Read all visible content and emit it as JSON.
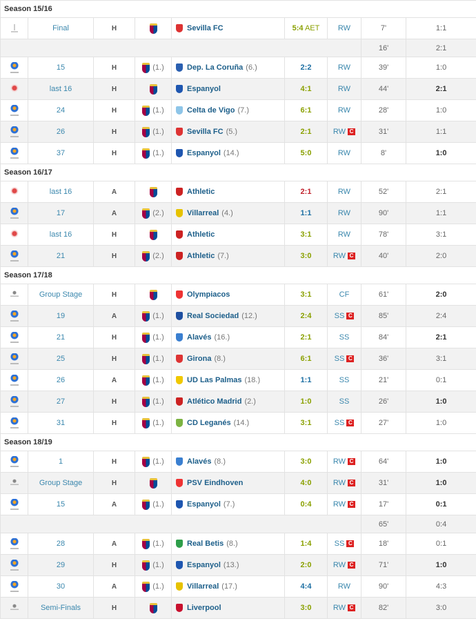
{
  "colors": {
    "win": "#8aa000",
    "draw": "#1d6fa3",
    "loss": "#c0202a",
    "link": "#1d5f8a"
  },
  "seasons": [
    {
      "label": "Season 15/16",
      "rows": [
        {
          "comp": "super-cup-icon",
          "round": "Final",
          "venue": "H",
          "bpos": "",
          "opp": "Sevilla FC",
          "opos": "",
          "oc": "#d33",
          "result": "5:4",
          "extra": "AET",
          "rc": "win",
          "pos": "RW",
          "cap": false,
          "min": "7'",
          "score": "1:1",
          "bold": false
        },
        {
          "sub": true,
          "min": "16'",
          "score": "2:1",
          "bold": false
        },
        {
          "comp": "laliga-icon",
          "round": "15",
          "venue": "H",
          "bpos": "(1.)",
          "opp": "Dep. La Coruña",
          "opos": "(6.)",
          "oc": "#2a5fb0",
          "result": "2:2",
          "rc": "draw",
          "pos": "RW",
          "cap": false,
          "min": "39'",
          "score": "1:0",
          "bold": false
        },
        {
          "comp": "copa-del-rey-icon",
          "round": "last 16",
          "venue": "H",
          "bpos": "",
          "opp": "Espanyol",
          "opos": "",
          "oc": "#1e56b0",
          "result": "4:1",
          "rc": "win",
          "pos": "RW",
          "cap": false,
          "min": "44'",
          "score": "2:1",
          "bold": true
        },
        {
          "comp": "laliga-icon",
          "round": "24",
          "venue": "H",
          "bpos": "(1.)",
          "opp": "Celta de Vigo",
          "opos": "(7.)",
          "oc": "#8ec5e8",
          "result": "6:1",
          "rc": "win",
          "pos": "RW",
          "cap": false,
          "min": "28'",
          "score": "1:0",
          "bold": false
        },
        {
          "comp": "laliga-icon",
          "round": "26",
          "venue": "H",
          "bpos": "(1.)",
          "opp": "Sevilla FC",
          "opos": "(5.)",
          "oc": "#d33",
          "result": "2:1",
          "rc": "win",
          "pos": "RW",
          "cap": true,
          "min": "31'",
          "score": "1:1",
          "bold": false
        },
        {
          "comp": "laliga-icon",
          "round": "37",
          "venue": "H",
          "bpos": "(1.)",
          "opp": "Espanyol",
          "opos": "(14.)",
          "oc": "#1e56b0",
          "result": "5:0",
          "rc": "win",
          "pos": "RW",
          "cap": false,
          "min": "8'",
          "score": "1:0",
          "bold": true
        }
      ]
    },
    {
      "label": "Season 16/17",
      "rows": [
        {
          "comp": "copa-del-rey-icon",
          "round": "last 16",
          "venue": "A",
          "bpos": "",
          "opp": "Athletic",
          "opos": "",
          "oc": "#c22",
          "result": "2:1",
          "rc": "loss",
          "pos": "RW",
          "cap": false,
          "min": "52'",
          "score": "2:1",
          "bold": false
        },
        {
          "comp": "laliga-icon",
          "round": "17",
          "venue": "A",
          "bpos": "(2.)",
          "opp": "Villarreal",
          "opos": "(4.)",
          "oc": "#e6c200",
          "result": "1:1",
          "rc": "draw",
          "pos": "RW",
          "cap": false,
          "min": "90'",
          "score": "1:1",
          "bold": false
        },
        {
          "comp": "copa-del-rey-icon",
          "round": "last 16",
          "venue": "H",
          "bpos": "",
          "opp": "Athletic",
          "opos": "",
          "oc": "#c22",
          "result": "3:1",
          "rc": "win",
          "pos": "RW",
          "cap": false,
          "min": "78'",
          "score": "3:1",
          "bold": false
        },
        {
          "comp": "laliga-icon",
          "round": "21",
          "venue": "H",
          "bpos": "(2.)",
          "opp": "Athletic",
          "opos": "(7.)",
          "oc": "#c22",
          "result": "3:0",
          "rc": "win",
          "pos": "RW",
          "cap": true,
          "min": "40'",
          "score": "2:0",
          "bold": false
        }
      ]
    },
    {
      "label": "Season 17/18",
      "rows": [
        {
          "comp": "champions-league-icon",
          "round": "Group Stage",
          "venue": "H",
          "bpos": "",
          "opp": "Olympiacos",
          "opos": "",
          "oc": "#e33",
          "result": "3:1",
          "rc": "win",
          "pos": "CF",
          "cap": false,
          "min": "61'",
          "score": "2:0",
          "bold": true
        },
        {
          "comp": "laliga-icon",
          "round": "19",
          "venue": "A",
          "bpos": "(1.)",
          "opp": "Real Sociedad",
          "opos": "(12.)",
          "oc": "#1e4fa0",
          "result": "2:4",
          "rc": "win",
          "pos": "SS",
          "cap": true,
          "min": "85'",
          "score": "2:4",
          "bold": false
        },
        {
          "comp": "laliga-icon",
          "round": "21",
          "venue": "H",
          "bpos": "(1.)",
          "opp": "Alavés",
          "opos": "(16.)",
          "oc": "#3a7fd0",
          "result": "2:1",
          "rc": "win",
          "pos": "SS",
          "cap": false,
          "min": "84'",
          "score": "2:1",
          "bold": true
        },
        {
          "comp": "laliga-icon",
          "round": "25",
          "venue": "H",
          "bpos": "(1.)",
          "opp": "Girona",
          "opos": "(8.)",
          "oc": "#d33",
          "result": "6:1",
          "rc": "win",
          "pos": "SS",
          "cap": true,
          "min": "36'",
          "score": "3:1",
          "bold": false
        },
        {
          "comp": "laliga-icon",
          "round": "26",
          "venue": "A",
          "bpos": "(1.)",
          "opp": "UD Las Palmas",
          "opos": "(18.)",
          "oc": "#f0c800",
          "result": "1:1",
          "rc": "draw",
          "pos": "SS",
          "cap": false,
          "min": "21'",
          "score": "0:1",
          "bold": false
        },
        {
          "comp": "laliga-icon",
          "round": "27",
          "venue": "H",
          "bpos": "(1.)",
          "opp": "Atlético Madrid",
          "opos": "(2.)",
          "oc": "#c22",
          "result": "1:0",
          "rc": "win",
          "pos": "SS",
          "cap": false,
          "min": "26'",
          "score": "1:0",
          "bold": true
        },
        {
          "comp": "laliga-icon",
          "round": "31",
          "venue": "H",
          "bpos": "(1.)",
          "opp": "CD Leganés",
          "opos": "(14.)",
          "oc": "#7cb342",
          "result": "3:1",
          "rc": "win",
          "pos": "SS",
          "cap": true,
          "min": "27'",
          "score": "1:0",
          "bold": false
        }
      ]
    },
    {
      "label": "Season 18/19",
      "rows": [
        {
          "comp": "laliga-icon",
          "round": "1",
          "venue": "H",
          "bpos": "(1.)",
          "opp": "Alavés",
          "opos": "(8.)",
          "oc": "#3a7fd0",
          "result": "3:0",
          "rc": "win",
          "pos": "RW",
          "cap": true,
          "min": "64'",
          "score": "1:0",
          "bold": true
        },
        {
          "comp": "champions-league-icon",
          "round": "Group Stage",
          "venue": "H",
          "bpos": "",
          "opp": "PSV Eindhoven",
          "opos": "",
          "oc": "#e33",
          "result": "4:0",
          "rc": "win",
          "pos": "RW",
          "cap": true,
          "min": "31'",
          "score": "1:0",
          "bold": true
        },
        {
          "comp": "laliga-icon",
          "round": "15",
          "venue": "A",
          "bpos": "(1.)",
          "opp": "Espanyol",
          "opos": "(7.)",
          "oc": "#1e56b0",
          "result": "0:4",
          "rc": "win",
          "pos": "RW",
          "cap": true,
          "min": "17'",
          "score": "0:1",
          "bold": true
        },
        {
          "sub": true,
          "min": "65'",
          "score": "0:4",
          "bold": false
        },
        {
          "comp": "laliga-icon",
          "round": "28",
          "venue": "A",
          "bpos": "(1.)",
          "opp": "Real Betis",
          "opos": "(8.)",
          "oc": "#2e9e4a",
          "result": "1:4",
          "rc": "win",
          "pos": "SS",
          "cap": true,
          "min": "18'",
          "score": "0:1",
          "bold": false
        },
        {
          "comp": "laliga-icon",
          "round": "29",
          "venue": "H",
          "bpos": "(1.)",
          "opp": "Espanyol",
          "opos": "(13.)",
          "oc": "#1e56b0",
          "result": "2:0",
          "rc": "win",
          "pos": "RW",
          "cap": true,
          "min": "71'",
          "score": "1:0",
          "bold": true
        },
        {
          "comp": "laliga-icon",
          "round": "30",
          "venue": "A",
          "bpos": "(1.)",
          "opp": "Villarreal",
          "opos": "(17.)",
          "oc": "#e6c200",
          "result": "4:4",
          "rc": "draw",
          "pos": "RW",
          "cap": false,
          "min": "90'",
          "score": "4:3",
          "bold": false
        },
        {
          "comp": "champions-league-icon",
          "round": "Semi-Finals",
          "venue": "H",
          "bpos": "",
          "opp": "Liverpool",
          "opos": "",
          "oc": "#c8102e",
          "result": "3:0",
          "rc": "win",
          "pos": "RW",
          "cap": true,
          "min": "82'",
          "score": "3:0",
          "bold": false
        }
      ]
    }
  ],
  "captain_label": "C"
}
